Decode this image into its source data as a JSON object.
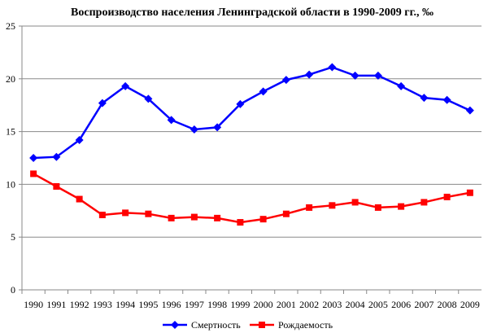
{
  "chart_data": {
    "type": "line",
    "title": "Воспроизводство населения Ленинградской области в 1990-2009 гг., ‰",
    "xlabel": "",
    "ylabel": "",
    "ylim": [
      0,
      25
    ],
    "yticks": [
      0,
      5,
      10,
      15,
      20,
      25
    ],
    "grid": "horizontal",
    "legend": "bottom",
    "categories": [
      "1990",
      "1991",
      "1992",
      "1993",
      "1994",
      "1995",
      "1996",
      "1997",
      "1998",
      "1999",
      "2000",
      "2001",
      "2002",
      "2003",
      "2004",
      "2005",
      "2006",
      "2007",
      "2008",
      "2009"
    ],
    "series": [
      {
        "name": "Смертность",
        "color": "#0000FF",
        "marker": "diamond",
        "values": [
          12.5,
          12.6,
          14.2,
          17.7,
          19.3,
          18.1,
          16.1,
          15.2,
          15.4,
          17.6,
          18.8,
          19.9,
          20.4,
          21.1,
          20.3,
          20.3,
          19.3,
          18.2,
          18.0,
          17.0
        ]
      },
      {
        "name": "Рождаемость",
        "color": "#FF0000",
        "marker": "square",
        "values": [
          11.0,
          9.8,
          8.6,
          7.1,
          7.3,
          7.2,
          6.8,
          6.9,
          6.8,
          6.4,
          6.7,
          7.2,
          7.8,
          8.0,
          8.3,
          7.8,
          7.9,
          8.3,
          8.8,
          9.2
        ]
      }
    ]
  }
}
